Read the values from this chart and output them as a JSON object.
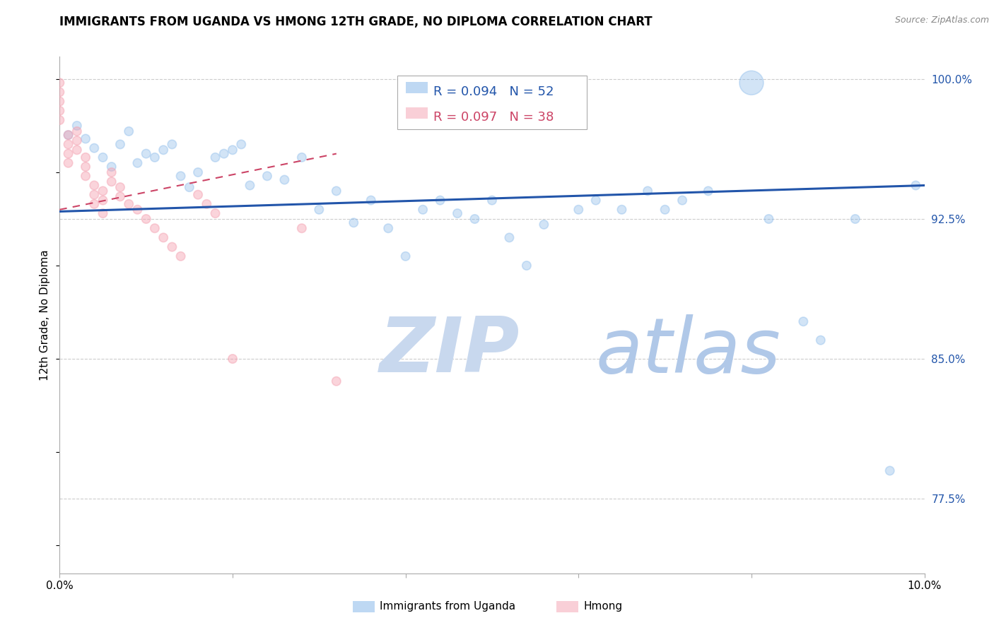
{
  "title": "IMMIGRANTS FROM UGANDA VS HMONG 12TH GRADE, NO DIPLOMA CORRELATION CHART",
  "source": "Source: ZipAtlas.com",
  "ylabel": "12th Grade, No Diploma",
  "ylabel_ticks": [
    "100.0%",
    "92.5%",
    "85.0%",
    "77.5%"
  ],
  "ylabel_tick_vals": [
    1.0,
    0.925,
    0.85,
    0.775
  ],
  "xmin": 0.0,
  "xmax": 0.1,
  "ymin": 0.735,
  "ymax": 1.012,
  "legend_blue_R": "0.094",
  "legend_blue_N": "52",
  "legend_pink_R": "0.097",
  "legend_pink_N": "38",
  "blue_color": "#7EB3E8",
  "pink_color": "#F4A0B0",
  "trend_blue_color": "#2255AA",
  "trend_pink_color": "#CC4466",
  "watermark_zip": "ZIP",
  "watermark_atlas": "atlas",
  "watermark_color_zip": "#C8D8EE",
  "watermark_color_atlas": "#B0C8E8",
  "grid_color": "#CCCCCC",
  "blue_scatter_x": [
    0.001,
    0.002,
    0.003,
    0.004,
    0.005,
    0.006,
    0.007,
    0.008,
    0.009,
    0.01,
    0.011,
    0.012,
    0.013,
    0.014,
    0.015,
    0.016,
    0.018,
    0.019,
    0.02,
    0.021,
    0.022,
    0.024,
    0.026,
    0.028,
    0.03,
    0.032,
    0.034,
    0.036,
    0.038,
    0.04,
    0.042,
    0.044,
    0.046,
    0.048,
    0.05,
    0.052,
    0.054,
    0.056,
    0.06,
    0.062,
    0.065,
    0.068,
    0.07,
    0.072,
    0.075,
    0.08,
    0.082,
    0.086,
    0.088,
    0.092,
    0.096,
    0.099
  ],
  "blue_scatter_y": [
    0.97,
    0.975,
    0.968,
    0.963,
    0.958,
    0.953,
    0.965,
    0.972,
    0.955,
    0.96,
    0.958,
    0.962,
    0.965,
    0.948,
    0.942,
    0.95,
    0.958,
    0.96,
    0.962,
    0.965,
    0.943,
    0.948,
    0.946,
    0.958,
    0.93,
    0.94,
    0.923,
    0.935,
    0.92,
    0.905,
    0.93,
    0.935,
    0.928,
    0.925,
    0.935,
    0.915,
    0.9,
    0.922,
    0.93,
    0.935,
    0.93,
    0.94,
    0.93,
    0.935,
    0.94,
    0.998,
    0.925,
    0.87,
    0.86,
    0.925,
    0.79,
    0.943
  ],
  "blue_scatter_sizes": [
    80,
    80,
    80,
    80,
    80,
    80,
    80,
    80,
    80,
    80,
    80,
    80,
    80,
    80,
    80,
    80,
    80,
    80,
    80,
    80,
    80,
    80,
    80,
    80,
    80,
    80,
    80,
    80,
    80,
    80,
    80,
    80,
    80,
    80,
    80,
    80,
    80,
    80,
    80,
    80,
    80,
    80,
    80,
    80,
    80,
    600,
    80,
    80,
    80,
    80,
    80,
    80
  ],
  "pink_scatter_x": [
    0.0,
    0.0,
    0.0,
    0.0,
    0.0,
    0.001,
    0.001,
    0.001,
    0.001,
    0.002,
    0.002,
    0.002,
    0.003,
    0.003,
    0.003,
    0.004,
    0.004,
    0.004,
    0.005,
    0.005,
    0.005,
    0.006,
    0.006,
    0.007,
    0.007,
    0.008,
    0.009,
    0.01,
    0.011,
    0.012,
    0.013,
    0.014,
    0.016,
    0.017,
    0.018,
    0.02,
    0.028,
    0.032
  ],
  "pink_scatter_y": [
    0.998,
    0.993,
    0.988,
    0.983,
    0.978,
    0.97,
    0.965,
    0.96,
    0.955,
    0.972,
    0.967,
    0.962,
    0.958,
    0.953,
    0.948,
    0.943,
    0.938,
    0.933,
    0.94,
    0.935,
    0.928,
    0.95,
    0.945,
    0.942,
    0.937,
    0.933,
    0.93,
    0.925,
    0.92,
    0.915,
    0.91,
    0.905,
    0.938,
    0.933,
    0.928,
    0.85,
    0.92,
    0.838
  ],
  "pink_scatter_sizes": [
    80,
    80,
    80,
    80,
    80,
    80,
    80,
    80,
    80,
    80,
    80,
    80,
    80,
    80,
    80,
    80,
    80,
    80,
    80,
    80,
    80,
    80,
    80,
    80,
    80,
    80,
    80,
    80,
    80,
    80,
    80,
    80,
    80,
    80,
    80,
    80,
    80,
    80
  ],
  "blue_trend_x": [
    0.0,
    0.1
  ],
  "blue_trend_y": [
    0.929,
    0.943
  ],
  "pink_trend_x": [
    0.0,
    0.032
  ],
  "pink_trend_y": [
    0.93,
    0.96
  ]
}
